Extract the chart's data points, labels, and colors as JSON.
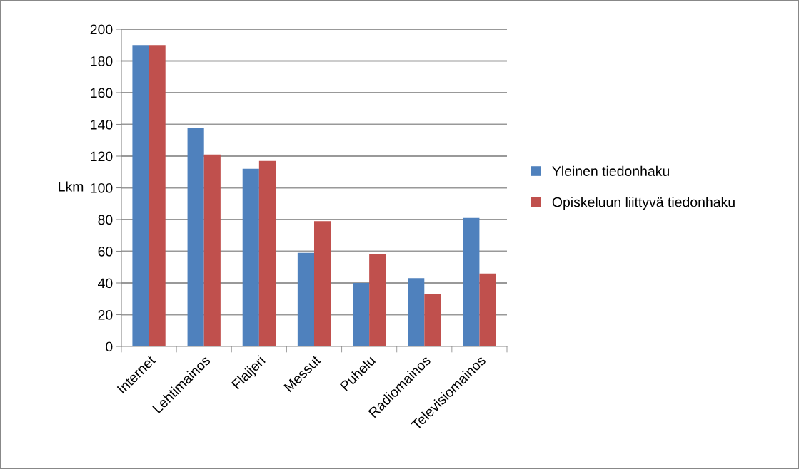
{
  "chart_data": {
    "type": "bar",
    "ylabel": "Lkm",
    "categories": [
      "Internet",
      "Lehtimainos",
      "Flaijeri",
      "Messut",
      "Puhelu",
      "Radiomainos",
      "Televisiomainos"
    ],
    "series": [
      {
        "name": "Yleinen tiedonhaku",
        "color": "#4f81bd",
        "values": [
          190,
          138,
          112,
          59,
          40,
          43,
          81
        ]
      },
      {
        "name": "Opiskeluun liittyvä tiedonhaku",
        "color": "#c0504d",
        "values": [
          190,
          121,
          117,
          79,
          58,
          33,
          46
        ]
      }
    ],
    "ylim": [
      0,
      200
    ],
    "yticks": [
      0,
      20,
      40,
      60,
      80,
      100,
      120,
      140,
      160,
      180,
      200
    ],
    "grid": "y",
    "legend": "right"
  }
}
